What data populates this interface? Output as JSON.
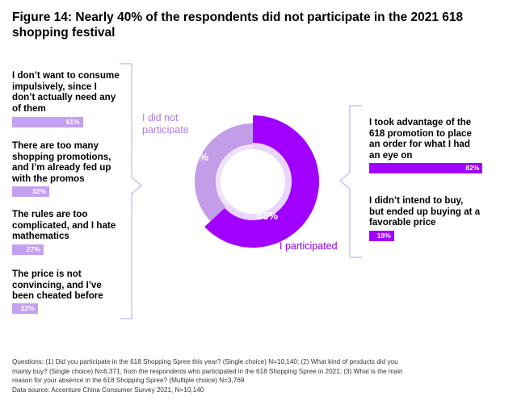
{
  "title": "Figure 14: Nearly 40% of the respondents did not participate in the 2021 618 shopping festival",
  "chart_data": [
    {
      "type": "pie",
      "subtype": "donut",
      "slices": [
        {
          "name": "I participated",
          "value": 63,
          "label": "63%",
          "color": "#a100ff"
        },
        {
          "name": "I did not participate",
          "value": 37,
          "label": "37%",
          "color": "#c39de8"
        }
      ],
      "segment_labels": {
        "participated": "I participated",
        "not_participated_line1": "I did not",
        "not_participated_line2": "participate"
      }
    },
    {
      "type": "bar",
      "orientation": "horizontal",
      "group": "I did not participate",
      "categories": [
        "I don’t want to consume impulsively, since I don’t actually need any of them",
        "There are too many shopping promotions, and I’m already fed up with the promos",
        "The rules are too complicated, and I hate mathematics",
        "The price is not convincing, and I’ve been cheated before"
      ],
      "values": [
        61,
        32,
        27,
        22
      ],
      "value_labels": [
        "61%",
        "32%",
        "27%",
        "22%"
      ],
      "color": "#c4a1f0",
      "xlim": [
        0,
        100
      ]
    },
    {
      "type": "bar",
      "orientation": "horizontal",
      "group": "I participated",
      "categories": [
        "I took advantage of the 618 promotion to place an order for what I had an eye on",
        "I didn’t intend to buy, but ended up buying at a favorable price"
      ],
      "values": [
        82,
        18
      ],
      "value_labels": [
        "82%",
        "18%"
      ],
      "color": "#a100ff",
      "xlim": [
        0,
        100
      ]
    }
  ],
  "left_reasons": [
    {
      "lines": [
        "I don’t want to consume",
        "impulsively, since I",
        "don’t actually need any",
        "of them"
      ],
      "pct": "61%"
    },
    {
      "lines": [
        "There are too many",
        "shopping promotions,",
        "and I’m already fed up",
        "with the promos"
      ],
      "pct": "32%"
    },
    {
      "lines": [
        "The rules are too",
        "complicated, and I hate",
        "mathematics"
      ],
      "pct": "27%"
    },
    {
      "lines": [
        "The price is not",
        "convincing, and I’ve",
        "been cheated before"
      ],
      "pct": "22%"
    }
  ],
  "right_outcomes": [
    {
      "lines": [
        "I took advantage of the",
        "618 promotion to place",
        "an order for what I had",
        "an eye on"
      ],
      "pct": "82%"
    },
    {
      "lines": [
        "I didn’t intend to buy,",
        "but ended up buying at a",
        "favorable price"
      ],
      "pct": "18%"
    }
  ],
  "footnote": {
    "line1": "Questions: (1) Did you participate in the 618 Shopping Spree this year? (Single choice) N=10,140; (2) What kind of products did you",
    "line2": "mainly buy? (Single choice) N=6,371, from the respondents who participated in the 618 Shopping Spree in 2021; (3) What is the main",
    "line3": "reason for your absence in the 618 Shopping Spree? (Multiple choice) N=3,769",
    "line4": "Data source: Accenture China Consumer Survey 2021, N=10,140"
  },
  "colors": {
    "participated": "#a100ff",
    "not_participated": "#c39de8",
    "not_participated_label": "#b07ce6",
    "participated_label": "#8a00e6",
    "bracket": "#d6bdf3"
  }
}
